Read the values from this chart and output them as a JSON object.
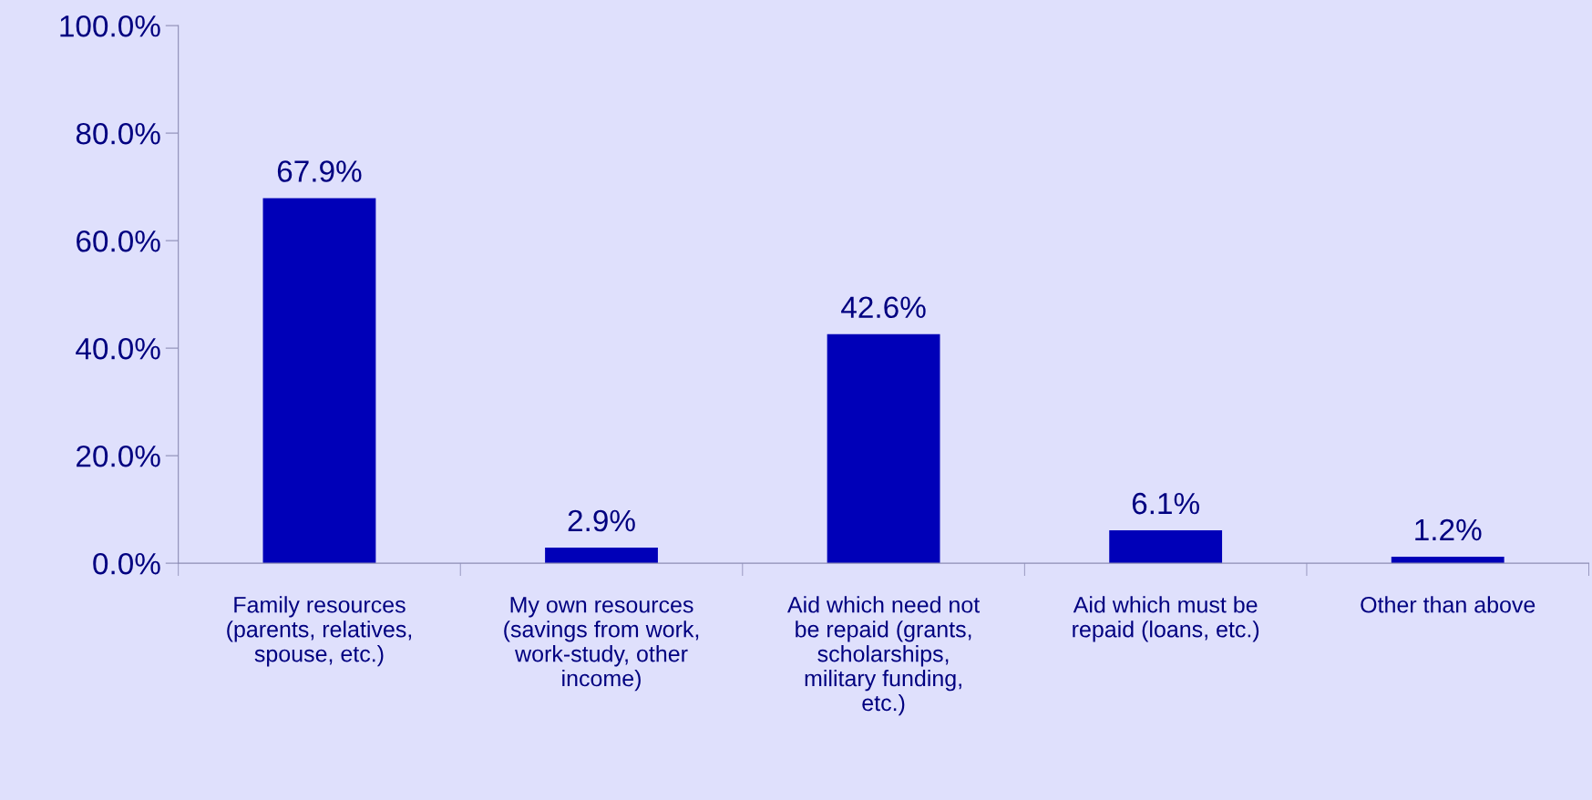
{
  "chart_data": {
    "type": "bar",
    "categories": [
      "Family resources (parents, relatives, spouse, etc.)",
      "My own resources (savings from work, work-study, other income)",
      "Aid which need not be repaid (grants, scholarships, military funding, etc.)",
      "Aid which must be repaid (loans, etc.)",
      "Other than above"
    ],
    "values": [
      67.9,
      2.9,
      42.6,
      6.1,
      1.2
    ],
    "value_labels": [
      "67.9%",
      "2.9%",
      "42.6%",
      "6.1%",
      "1.2%"
    ],
    "color": "#0000b8",
    "ylim": [
      0,
      100
    ],
    "yticks": [
      {
        "value": 0,
        "label": "0.0%"
      },
      {
        "value": 20,
        "label": "20.0%"
      },
      {
        "value": 40,
        "label": "40.0%"
      },
      {
        "value": 60,
        "label": "60.0%"
      },
      {
        "value": 80,
        "label": "80.0%"
      },
      {
        "value": 100,
        "label": "100.0%"
      }
    ],
    "grid": false,
    "legend": false
  }
}
